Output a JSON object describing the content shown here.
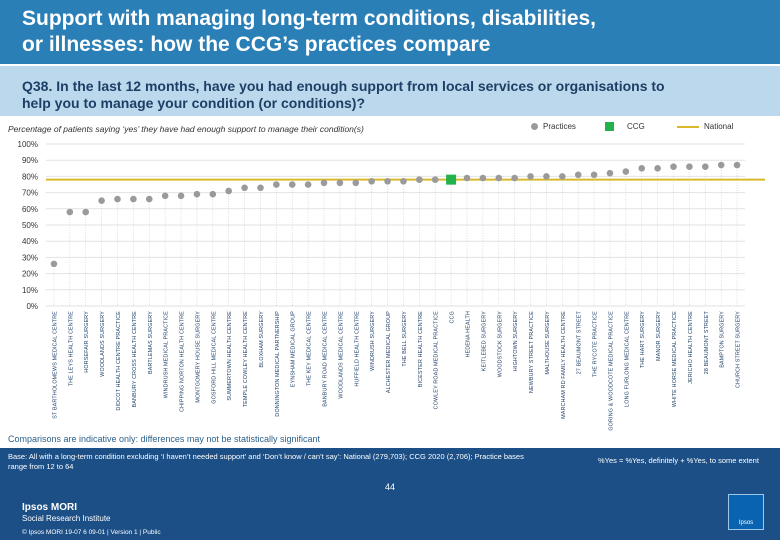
{
  "header": {
    "title_line1": "Support with managing long-term conditions, disabilities,",
    "title_line2": "or illnesses: how the CCG’s practices compare",
    "question_line1": "Q38. In the last 12 months, have you had enough support from local services or organisations to",
    "question_line2": "help you to manage your condition (or conditions)?"
  },
  "legend": {
    "practices": "Practices",
    "ccg": "CCG",
    "national": "National"
  },
  "chart_data": {
    "type": "scatter",
    "title": "",
    "subtitle": "Percentage of patients saying ‘yes’ they have had enough support to manage their condition(s)",
    "xlabel": "",
    "ylabel": "",
    "ylim": [
      0,
      100
    ],
    "y_ticks": [
      "0%",
      "10%",
      "20%",
      "30%",
      "40%",
      "50%",
      "60%",
      "70%",
      "80%",
      "90%",
      "100%"
    ],
    "national_value": 78,
    "colors": {
      "practice": "#9a9a9a",
      "ccg": "#21b24b",
      "national": "#d9b82b"
    },
    "categories": [
      "ST BARTHOLOMEWS MEDICAL CENTRE",
      "THE LEYS HEALTH CENTRE",
      "HORSEFAIR SURGERY",
      "WOODLANDS SURGERY",
      "DIDCOT HEALTH CENTRE PRACTICE",
      "BANBURY CROSS HEALTH CENTRE",
      "BARTLEMAS SURGERY",
      "WINDRUSH MEDICAL PRACTICE",
      "CHIPPING NORTON HEALTH CENTRE",
      "MONTGOMERY HOUSE SURGERY",
      "GOSFORD HILL MEDICAL CENTRE",
      "SUMMERTOWN HEALTH CENTRE",
      "TEMPLE COWLEY HEALTH CENTRE",
      "BLOXHAM SURGERY",
      "DONNINGTON MEDICAL PARTNERSHIP",
      "EYNSHAM MEDICAL GROUP",
      "THE KEY MEDICAL CENTRE",
      "BANBURY ROAD MEDICAL CENTRE",
      "WOODLANDS MEDICAL CENTRE",
      "HUFFIELD HEALTH CENTRE",
      "WINDRUSH SURGERY",
      "ALCHESTER MEDICAL GROUP",
      "THE BELL SURGERY",
      "BICESTER HEALTH CENTRE",
      "COWLEY ROAD MEDICAL PRACTICE",
      "CCG",
      "HEDENA HEALTH",
      "KEITLEBED SURGERY",
      "WOODSTOCK SURGERY",
      "HIGHTOWN SURGERY",
      "NEWBURY STREET PRACTICE",
      "MALTHOUSE SURGERY",
      "MARCHAM RD FAMILY HEALTH CENTRE",
      "27 BEAUMONT STREET",
      "THE RYCOTE PRACTICE",
      "GORING & WOODCOTE MEDICAL PRACTICE",
      "LONG FURLONG MEDICAL CENTRE",
      "THE HART SURGERY",
      "MANOR SURGERY",
      "WHITE HORSE MEDICAL PRACTICE",
      "JERICHO HEALTH CENTRE",
      "28 BEAUMONT STREET",
      "BAMPTON SURGERY",
      "CHURCH STREET SURGERY"
    ],
    "values": [
      26,
      58,
      58,
      65,
      66,
      66,
      66,
      68,
      68,
      69,
      69,
      71,
      73,
      73,
      75,
      75,
      75,
      76,
      76,
      76,
      77,
      77,
      77,
      78,
      78,
      78,
      79,
      79,
      79,
      79,
      80,
      80,
      80,
      81,
      81,
      82,
      83,
      85,
      85,
      86,
      86,
      86,
      87,
      87
    ],
    "ccg_index": 25
  },
  "notes": {
    "comparisons": "Comparisons are indicative only: differences may not be statistically significant",
    "base": "Base: All with a long-term condition excluding ‘I haven’t needed support’ and ‘Don’t know / can’t say’: National (279,703); CCG 2020 (2,706); Practice bases range from 12 to 64",
    "yes_definition": "%Yes = %Yes, definitely + %Yes, to some extent"
  },
  "footer": {
    "page_number": "44",
    "brand_line1": "Ipsos MORI",
    "brand_line2": "Social Research Institute",
    "copyright": "© Ipsos MORI     19-07 6 09-01 | Version 1 | Public",
    "logo_text": "Ipsos"
  }
}
